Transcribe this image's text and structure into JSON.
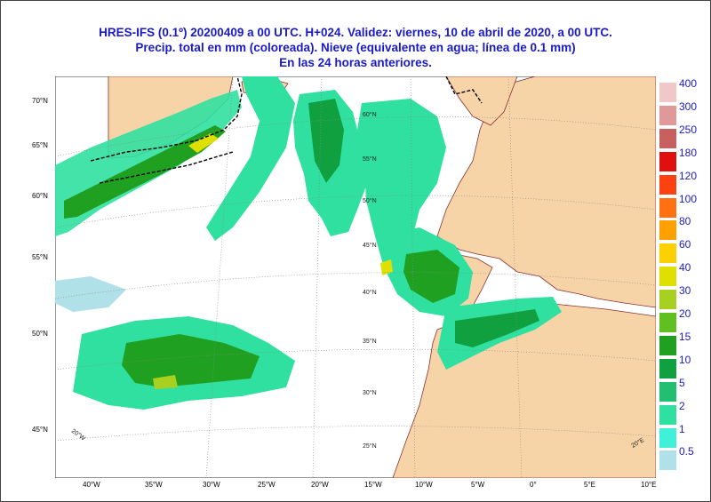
{
  "title": {
    "line1": "HRES-IFS (0.1º) 20200409 a 00 UTC.  H+024. Validez: viernes, 10 de abril de 2020,  a  00 UTC.",
    "line2": "Precip. total en mm (coloreada). Nieve (equivalente en agua; línea de 0.1 mm)",
    "line3": "En las 24 horas anteriores."
  },
  "axes": {
    "bottom_lon": [
      "40°W",
      "35°W",
      "30°W",
      "25°W",
      "20°W",
      "15°W",
      "10°W",
      "5°W",
      "0°",
      "5°E",
      "10°E"
    ],
    "left_lat": [
      "70°N",
      "65°N",
      "60°N",
      "55°N",
      "50°N",
      "45°N"
    ],
    "inner_lat": [
      "60°N",
      "55°N",
      "50°N",
      "45°N",
      "40°N",
      "35°N",
      "30°N",
      "25°N"
    ],
    "inner_lon": [
      "20°W",
      "20°E"
    ]
  },
  "legend": {
    "values": [
      "400",
      "300",
      "250",
      "180",
      "120",
      "100",
      "80",
      "60",
      "40",
      "30",
      "20",
      "15",
      "10",
      "5",
      "2",
      "1",
      "0.5"
    ],
    "colors": [
      "#f0c8c8",
      "#e09898",
      "#c86060",
      "#e01010",
      "#ff4010",
      "#ff7010",
      "#ffa000",
      "#ffd000",
      "#e0e000",
      "#a8d020",
      "#60c020",
      "#20a020",
      "#10a040",
      "#20c070",
      "#30e0a0",
      "#40f0d8",
      "#b0e0e8"
    ]
  },
  "colors": {
    "ocean": "#ffffff",
    "land": "#f7d4a8",
    "border": "#8a3030",
    "snow_line": "#000000",
    "title": "#1a1acc"
  }
}
